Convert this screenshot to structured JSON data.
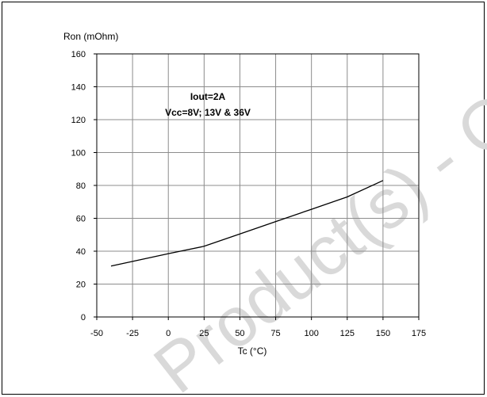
{
  "chart_data": {
    "type": "line",
    "ylabel": "Ron (mOhm)",
    "xlabel": "Tc (°C)",
    "xlim": [
      -50,
      175
    ],
    "ylim": [
      0,
      160
    ],
    "xticks": [
      -50,
      -25,
      0,
      25,
      50,
      75,
      100,
      125,
      150,
      175
    ],
    "yticks": [
      0,
      20,
      40,
      60,
      80,
      100,
      120,
      140,
      160
    ],
    "grid": true,
    "annotations": [
      "Iout=2A",
      "Vcc=8V; 13V & 36V"
    ],
    "series": [
      {
        "x": [
          -40,
          0,
          25,
          50,
          75,
          100,
          125,
          150
        ],
        "y": [
          31,
          38.5,
          43,
          50.5,
          58,
          65.5,
          73,
          83
        ]
      }
    ],
    "watermark": "Product(s) - O"
  }
}
